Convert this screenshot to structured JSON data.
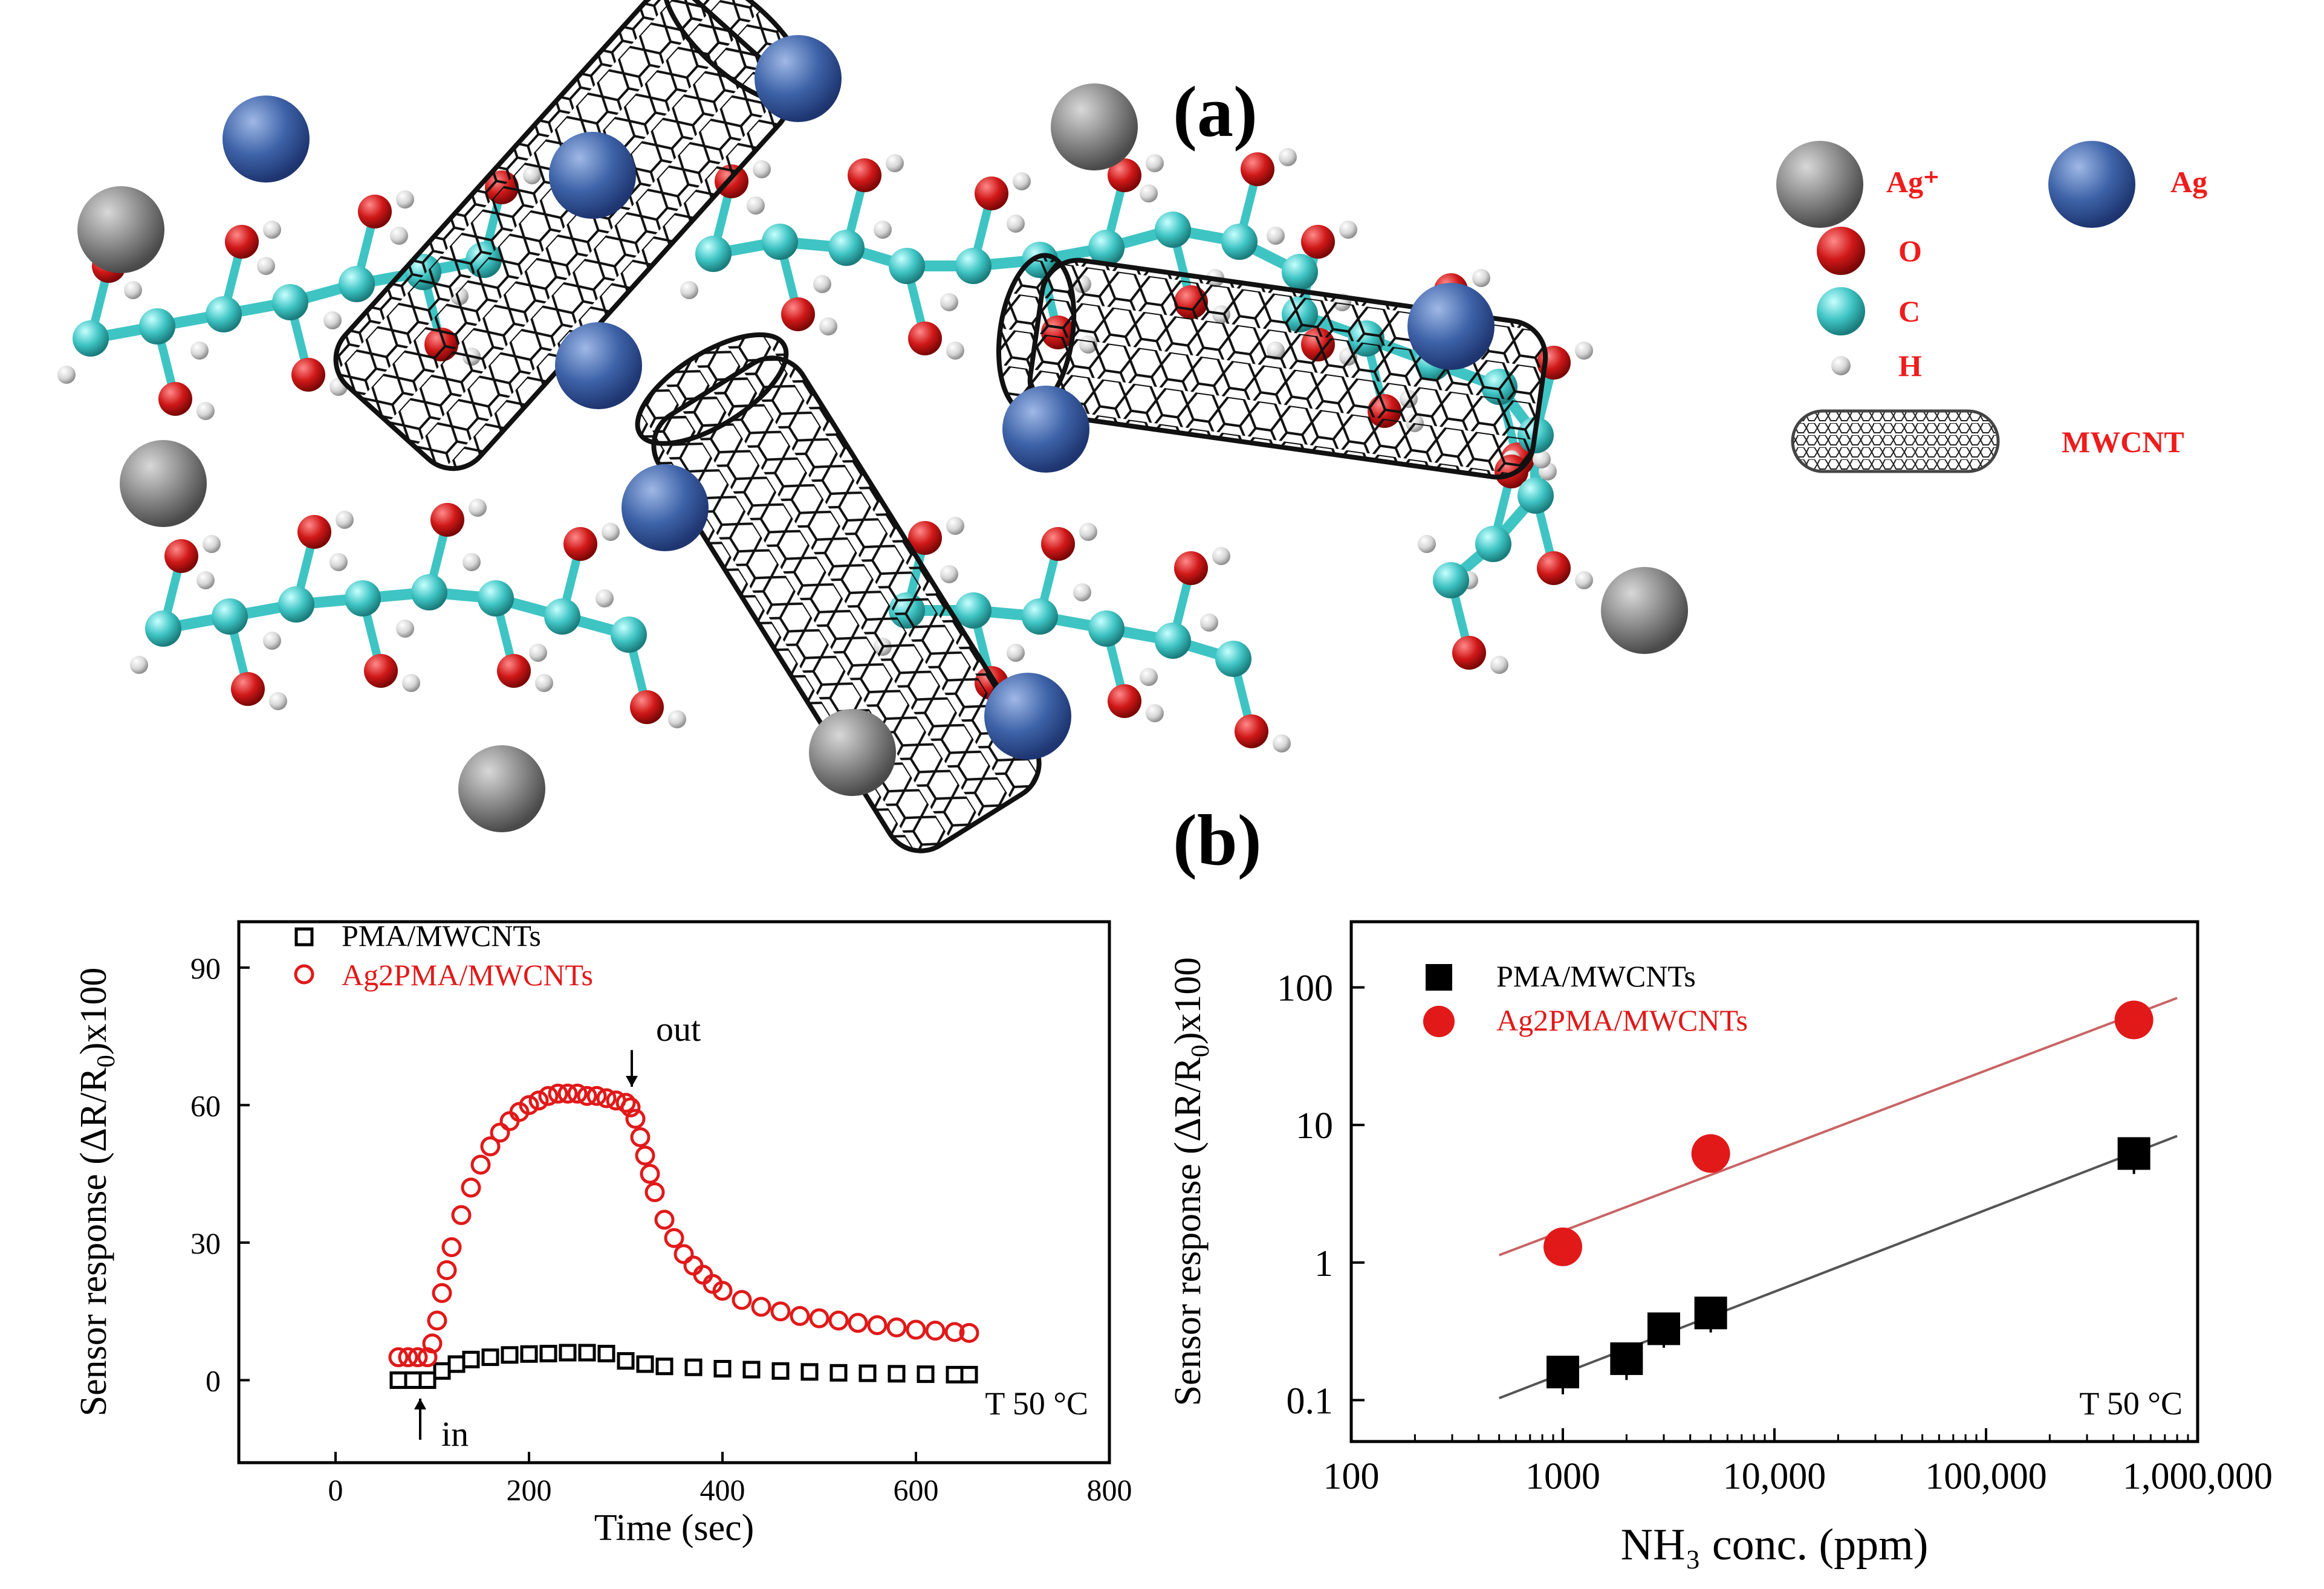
{
  "panel_labels": {
    "a": "(a)",
    "b": "(b)"
  },
  "schematic": {
    "legend": [
      {
        "label": "Ag⁺",
        "symbol": "ag-ion",
        "color": "#8a8a8a"
      },
      {
        "label": "Ag",
        "symbol": "ag-atom",
        "color": "#3e63a8"
      },
      {
        "label": "O",
        "symbol": "oxygen",
        "color": "#d01818"
      },
      {
        "label": "C",
        "symbol": "carbon",
        "color": "#3fc4c4"
      },
      {
        "label": "H",
        "symbol": "hydrogen",
        "color": "#d6d6d6"
      },
      {
        "label": "MWCNT",
        "symbol": "nanotube",
        "color": "#333333"
      }
    ],
    "legend_text_color": "#ee1c1c"
  },
  "chart_data": [
    {
      "type": "scatter",
      "title": "",
      "xlabel": "Time (sec)",
      "ylabel": "Sensor response (ΔR/R0)x100",
      "xlim": [
        -100,
        800
      ],
      "ylim": [
        -18,
        100
      ],
      "xticks": [
        0,
        200,
        400,
        600,
        800
      ],
      "yticks": [
        0,
        30,
        60,
        90
      ],
      "x_tick_labels": [
        "0",
        "200",
        "400",
        "600",
        "800"
      ],
      "y_tick_labels": [
        "0",
        "30",
        "60",
        "90"
      ],
      "annotations": {
        "in": "in",
        "in_x": 100,
        "out": "out",
        "out_x": 300,
        "temperature": "T 50 °C"
      },
      "series": [
        {
          "name": "PMA/MWCNTs",
          "marker": "open-square",
          "color": "#000000",
          "x": [
            65,
            80,
            95,
            110,
            125,
            140,
            160,
            180,
            200,
            220,
            240,
            260,
            280,
            300,
            320,
            340,
            370,
            400,
            430,
            460,
            490,
            520,
            550,
            580,
            610,
            640,
            655
          ],
          "y": [
            0,
            0,
            0,
            2,
            3.5,
            4.5,
            5,
            5.5,
            5.7,
            5.8,
            6,
            6,
            5.8,
            4.2,
            3.5,
            3,
            2.8,
            2.5,
            2.3,
            2,
            1.8,
            1.6,
            1.5,
            1.4,
            1.3,
            1.2,
            1.2
          ]
        },
        {
          "name": "Ag2PMA/MWCNTs",
          "marker": "open-circle",
          "color": "#e11919",
          "x": [
            65,
            75,
            85,
            95,
            100,
            105,
            110,
            115,
            120,
            130,
            140,
            150,
            160,
            170,
            180,
            190,
            200,
            210,
            220,
            230,
            240,
            250,
            260,
            270,
            280,
            290,
            300,
            305,
            310,
            315,
            320,
            325,
            330,
            340,
            350,
            360,
            370,
            380,
            390,
            400,
            420,
            440,
            460,
            480,
            500,
            520,
            540,
            560,
            580,
            600,
            620,
            640,
            655
          ],
          "y": [
            5,
            5,
            5,
            5,
            8,
            13,
            19,
            24,
            29,
            36,
            42,
            47,
            51,
            54,
            56.5,
            58.5,
            60,
            61,
            62,
            62.5,
            62.5,
            62.5,
            62,
            62,
            61.5,
            61,
            60.5,
            59.5,
            57,
            53,
            49,
            45,
            41,
            35,
            31,
            27.5,
            25,
            23,
            21,
            19.5,
            17.5,
            16,
            15,
            14,
            13.5,
            13,
            12.5,
            12,
            11.5,
            11,
            10.8,
            10.5,
            10.3
          ]
        }
      ]
    },
    {
      "type": "scatter",
      "title": "",
      "xlabel": "NH₃ conc. (ppm)",
      "ylabel": "Sensor response (ΔR/R0)x100",
      "xscale": "log",
      "yscale": "log",
      "xlim": [
        100,
        1000000
      ],
      "ylim": [
        0.05,
        300
      ],
      "xticks": [
        100,
        1000,
        10000,
        100000,
        1000000
      ],
      "yticks": [
        0.1,
        1,
        10,
        100
      ],
      "x_tick_labels": [
        "100",
        "1000",
        "10,000",
        "100,000",
        "1,000,000"
      ],
      "y_tick_labels": [
        "0.1",
        "1",
        "10",
        "100"
      ],
      "annotations": {
        "temperature": "T 50 °C"
      },
      "fit_range": [
        500,
        800000
      ],
      "series": [
        {
          "name": "PMA/MWCNTs",
          "marker": "filled-square",
          "color": "#000000",
          "fit_color": "#555555",
          "x": [
            1000,
            2000,
            3000,
            5000,
            500000
          ],
          "y": [
            0.16,
            0.2,
            0.33,
            0.43,
            6.2
          ],
          "err": [
            0.05,
            0.06,
            0.09,
            0.12,
            1.8
          ]
        },
        {
          "name": "Ag2PMA/MWCNTs",
          "marker": "filled-circle",
          "color": "#e11919",
          "fit_color": "#c86464",
          "x": [
            1000,
            5000,
            500000
          ],
          "y": [
            1.3,
            6.2,
            58
          ]
        }
      ]
    }
  ]
}
